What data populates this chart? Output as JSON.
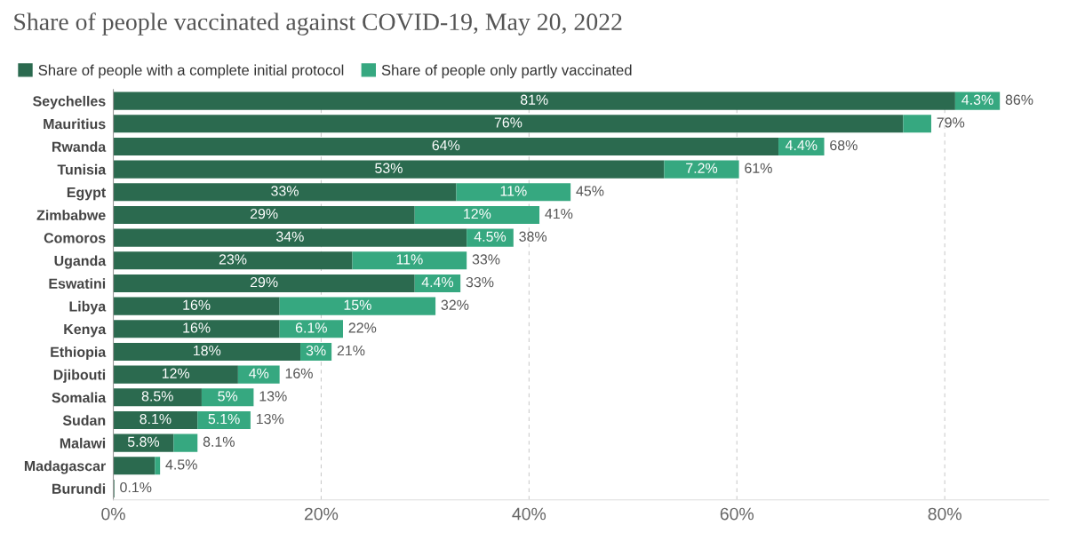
{
  "chart_data": {
    "type": "bar",
    "orientation": "horizontal",
    "stacked": true,
    "title": "Share of people vaccinated against COVID-19, May 20, 2022",
    "categories": [
      "Seychelles",
      "Mauritius",
      "Rwanda",
      "Tunisia",
      "Egypt",
      "Zimbabwe",
      "Comoros",
      "Uganda",
      "Eswatini",
      "Libya",
      "Kenya",
      "Ethiopia",
      "Djibouti",
      "Somalia",
      "Sudan",
      "Malawi",
      "Madagascar",
      "Burundi"
    ],
    "series": [
      {
        "name": "Share of people with a complete initial protocol",
        "color": "#2b6a4f",
        "values": [
          81,
          76,
          64,
          53,
          33,
          29,
          34,
          23,
          29,
          16,
          16,
          18,
          12,
          8.5,
          8.1,
          5.8,
          4.0,
          0.1
        ],
        "value_labels": [
          "81%",
          "76%",
          "64%",
          "53%",
          "33%",
          "29%",
          "34%",
          "23%",
          "29%",
          "16%",
          "16%",
          "18%",
          "12%",
          "8.5%",
          "8.1%",
          "5.8%",
          null,
          null
        ]
      },
      {
        "name": "Share of people only partly vaccinated",
        "color": "#36a880",
        "values": [
          4.3,
          2.7,
          4.4,
          7.2,
          11,
          12,
          4.5,
          11,
          4.4,
          15,
          6.1,
          3,
          4,
          5,
          5.1,
          2.3,
          0.5,
          0.0
        ],
        "value_labels": [
          "4.3%",
          null,
          "4.4%",
          "7.2%",
          "11%",
          "12%",
          "4.5%",
          "11%",
          "4.4%",
          "15%",
          "6.1%",
          "3%",
          "4%",
          "5%",
          "5.1%",
          null,
          null,
          null
        ]
      }
    ],
    "totals": [
      "86%",
      "79%",
      "68%",
      "61%",
      "45%",
      "41%",
      "38%",
      "33%",
      "33%",
      "32%",
      "22%",
      "21%",
      "16%",
      "13%",
      "13%",
      "8.1%",
      "4.5%",
      "0.1%"
    ],
    "xlim": [
      0,
      90
    ],
    "xticks": [
      {
        "value": 0,
        "label": "0%"
      },
      {
        "value": 20,
        "label": "20%"
      },
      {
        "value": 40,
        "label": "40%"
      },
      {
        "value": 60,
        "label": "60%"
      },
      {
        "value": 80,
        "label": "80%"
      }
    ],
    "grid": "x",
    "legend": "top left"
  }
}
